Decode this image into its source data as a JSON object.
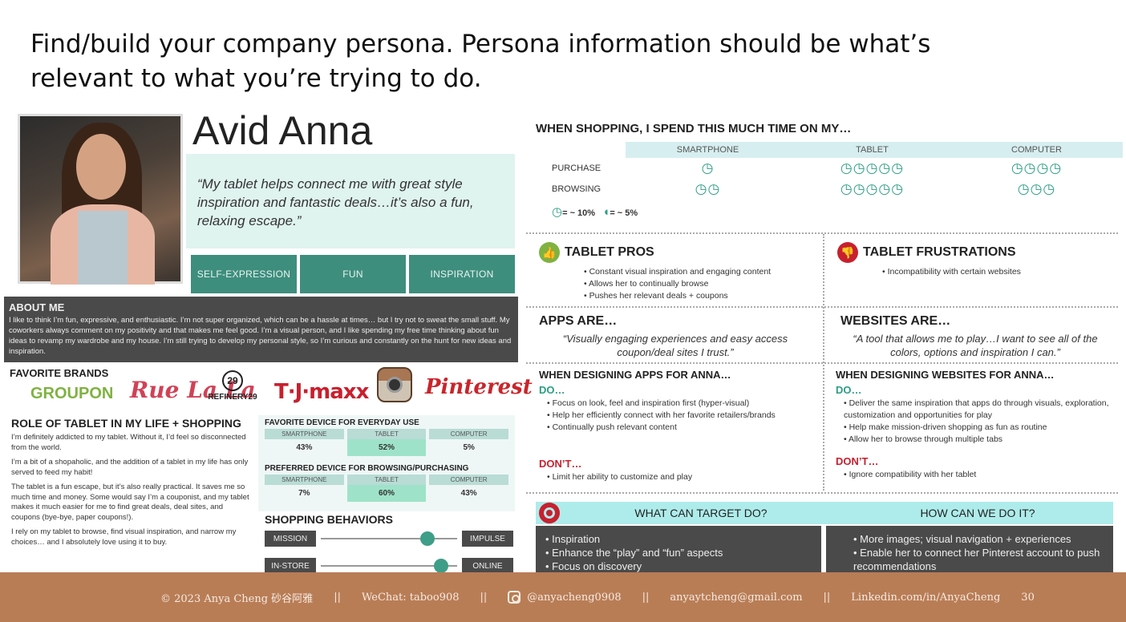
{
  "heading": "Find/build your company persona. Persona information should be what’s relevant to what you’re trying to do.",
  "persona": {
    "name": "Avid Anna",
    "quote": "“My tablet helps connect me with great style inspiration and fantastic deals…it’s also a fun, relaxing escape.”",
    "traits": [
      "SELF-EXPRESSION",
      "FUN",
      "INSPIRATION"
    ]
  },
  "about": {
    "title": "ABOUT ME",
    "text": "I like to think I’m fun, expressive, and enthusiastic. I’m not super organized, which can be a hassle at times… but I try not to sweat the small stuff. My coworkers always comment on my positivity and that makes me feel good. I’m a visual person, and I like spending my free time thinking about fun ideas to revamp my wardrobe and my house. I’m still trying to develop my personal style, so I’m curious and constantly on the hunt for new ideas and inspiration."
  },
  "brands": {
    "label": "FAVORITE BRANDS",
    "items": [
      "GROUPON",
      "Rue La La",
      "REFINERY29",
      "T·J·maxx",
      "Instagram",
      "Pinterest"
    ],
    "r29mark": "29"
  },
  "role": {
    "title": "ROLE OF TABLET IN MY LIFE + SHOPPING",
    "p1": "I’m definitely addicted to my tablet. Without it, I’d feel so disconnected from the world.",
    "p2": "I’m a bit of a shopaholic, and the addition of a tablet in my life has only served to feed my habit!",
    "p3": "The tablet is a fun escape, but it’s also really practical. It saves me so much time and money. Some would say I’m a couponist, and my tablet makes it much easier for me to find great deals, deal sites, and coupons (bye-bye, paper coupons!).",
    "p4": "I rely on my tablet to browse, find visual inspiration, and narrow my choices… and I absolutely love using it to buy."
  },
  "devices": {
    "everyday": {
      "title": "FAVORITE DEVICE FOR EVERYDAY USE",
      "cols": [
        "SMARTPHONE",
        "TABLET",
        "COMPUTER"
      ],
      "vals": [
        "43%",
        "52%",
        "5%"
      ]
    },
    "preferred": {
      "title": "PREFERRED DEVICE FOR BROWSING/PURCHASING",
      "cols": [
        "SMARTPHONE",
        "TABLET",
        "COMPUTER"
      ],
      "vals": [
        "7%",
        "60%",
        "43%"
      ]
    }
  },
  "shopping": {
    "title": "SHOPPING BEHAVIORS",
    "rows": [
      {
        "left": "MISSION",
        "right": "IMPULSE",
        "value": 0.78
      },
      {
        "left": "IN-STORE",
        "right": "ONLINE",
        "value": 0.88
      }
    ]
  },
  "time": {
    "title": "WHEN SHOPPING, I SPEND THIS MUCH TIME ON MY…",
    "cols": [
      "SMARTPHONE",
      "TABLET",
      "COMPUTER"
    ],
    "rows": [
      {
        "label": "PURCHASE",
        "counts": [
          "◷",
          "◷◷◷◷◷",
          "◷◷◷◷"
        ]
      },
      {
        "label": "BROWSING",
        "counts": [
          "◷◷",
          "◷◷◷◷◷",
          "◷◷◷"
        ]
      }
    ],
    "legend_full": "= ~ 10%",
    "legend_half": "= ~ 5%",
    "full_icon": "◷",
    "half_icon": "◖"
  },
  "pros": {
    "title": "TABLET PROS",
    "items": [
      "Constant visual inspiration and engaging content",
      "Allows her to continually browse",
      "Pushes her relevant deals + coupons"
    ],
    "icon": "👍"
  },
  "frustrations": {
    "title": "TABLET FRUSTRATIONS",
    "items": [
      "Incompatibility with certain websites"
    ],
    "icon": "👎"
  },
  "apps": {
    "title": "APPS ARE…",
    "quote": "“Visually engaging experiences and easy access coupon/deal sites I trust.”"
  },
  "websites": {
    "title": "WEBSITES ARE…",
    "quote": "“A tool that allows me to play…I want to see all of the colors, options and inspiration I can.”"
  },
  "design_apps": {
    "title": "WHEN DESIGNING APPS FOR ANNA…",
    "do_label": "DO…",
    "do": [
      "Focus on look, feel and inspiration first (hyper-visual)",
      "Help her efficiently connect with her favorite retailers/brands",
      "Continually push relevant content"
    ],
    "dont_label": "DON’T…",
    "dont": [
      "Limit her ability to customize and play"
    ]
  },
  "design_web": {
    "title": "WHEN DESIGNING WEBSITES FOR ANNA…",
    "do_label": "DO…",
    "do": [
      "Deliver the same inspiration that apps do through visuals, exploration, customization and opportunities for play",
      "Help make mission-driven shopping as fun as routine",
      "Allow her to browse through multiple tabs"
    ],
    "dont_label": "DON’T…",
    "dont": [
      "Ignore compatibility with her tablet"
    ]
  },
  "target": {
    "left_head": "WHAT CAN TARGET DO?",
    "right_head": "HOW CAN WE DO IT?",
    "left_items": [
      "Inspiration",
      "Enhance the “play” and “fun” aspects",
      "Focus on discovery"
    ],
    "right_items": [
      "More images; visual navigation + experiences",
      "Enable her to connect her Pinterest account to push recommendations"
    ]
  },
  "footer": {
    "copyright": "© 2023 Anya Cheng 砂谷阿雅",
    "wechat": "WeChat: taboo908",
    "instagram": "@anyacheng0908",
    "email": "anyaytcheng@gmail.com",
    "linkedin": "Linkedin.com/in/AnyaCheng",
    "page": "30",
    "sep": "||"
  }
}
